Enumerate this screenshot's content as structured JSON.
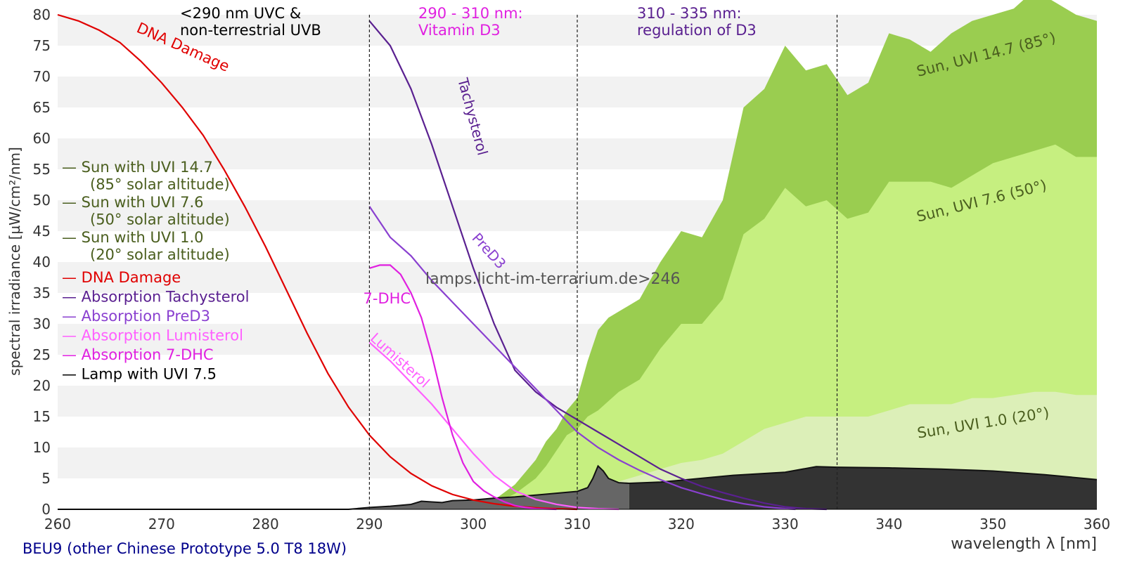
{
  "chart_data": {
    "type": "area",
    "xlabel": "wavelength λ [nm]",
    "ylabel": "spectral irradiance [µW/cm²/nm]",
    "xlim": [
      260,
      360
    ],
    "ylim": [
      0,
      80
    ],
    "xticks": [
      260,
      270,
      280,
      290,
      300,
      310,
      320,
      330,
      340,
      350,
      360
    ],
    "yticks": [
      0,
      5,
      10,
      15,
      20,
      25,
      30,
      35,
      40,
      45,
      50,
      55,
      60,
      65,
      70,
      75,
      80
    ],
    "grid": "horizontal alternating bands",
    "caption": "BEU9 (other Chinese Prototype 5.0 T8 18W)",
    "watermark": "lamps.licht-im-terrarium.de>246",
    "regions": [
      {
        "x": 290,
        "lines": [
          "<290 nm UVC &",
          "non-terrestrial UVB"
        ],
        "color": "#000000"
      },
      {
        "x": 310,
        "lines": [
          "290 - 310 nm:",
          "Vitamin D3"
        ],
        "color": "#e020e0"
      },
      {
        "x": 335,
        "lines": [
          "310 - 335 nm:",
          "regulation of D3"
        ],
        "color": "#5a2090"
      }
    ],
    "legend_placement": "left",
    "legend": [
      {
        "lines": [
          "— Sun with UVI 14.7",
          "(85° solar altitude)"
        ],
        "color": "#4a5e1e"
      },
      {
        "lines": [
          "— Sun with UVI 7.6",
          "(50° solar altitude)"
        ],
        "color": "#4a5e1e"
      },
      {
        "lines": [
          "— Sun with UVI 1.0",
          "(20° solar altitude)"
        ],
        "color": "#4a5e1e"
      },
      {
        "lines": [
          "— DNA Damage"
        ],
        "color": "#e00000"
      },
      {
        "lines": [
          "— Absorption Tachysterol"
        ],
        "color": "#5a2090"
      },
      {
        "lines": [
          "— Absorption PreD3"
        ],
        "color": "#8a40d0"
      },
      {
        "lines": [
          "— Absorption Lumisterol"
        ],
        "color": "#ff60ff"
      },
      {
        "lines": [
          "— Absorption 7-DHC"
        ],
        "color": "#e020e0"
      },
      {
        "lines": [
          "— Lamp with UVI 7.5"
        ],
        "color": "#000000"
      }
    ],
    "series": [
      {
        "name": "Sun with UVI 14.7",
        "label": "Sun, UVI 14.7 (85°)",
        "kind": "area",
        "color": "#9acd50",
        "x": [
          300,
          302,
          304,
          305,
          306,
          307,
          308,
          309,
          310,
          311,
          312,
          313,
          314,
          315,
          316,
          318,
          320,
          322,
          324,
          326,
          328,
          330,
          332,
          334,
          336,
          338,
          340,
          342,
          344,
          346,
          348,
          350,
          352,
          354,
          356,
          358,
          360
        ],
        "y": [
          0,
          1.5,
          4,
          6,
          8,
          11,
          13,
          16,
          18,
          24,
          29,
          31,
          32,
          33,
          34,
          40,
          45,
          44,
          50,
          65,
          68,
          75,
          71,
          72,
          67,
          69,
          77,
          76,
          74,
          77,
          79,
          80,
          81,
          84,
          82,
          80,
          79
        ]
      },
      {
        "name": "Sun with UVI 7.6",
        "label": "Sun, UVI 7.6 (50°)",
        "kind": "area",
        "color": "#c6ef80",
        "x": [
          300,
          302,
          304,
          306,
          307,
          308,
          309,
          310,
          311,
          312,
          313,
          314,
          316,
          318,
          320,
          322,
          324,
          326,
          328,
          330,
          332,
          334,
          336,
          338,
          340,
          342,
          344,
          346,
          348,
          350,
          352,
          354,
          356,
          358,
          360
        ],
        "y": [
          0,
          1,
          2.5,
          5,
          7,
          9.5,
          12,
          13,
          15,
          16,
          17.5,
          19,
          21,
          26,
          30,
          30,
          34,
          44.5,
          47,
          52,
          49,
          50,
          47,
          48,
          53,
          53,
          53,
          52,
          54,
          56,
          57,
          58,
          59,
          57,
          57
        ]
      },
      {
        "name": "Sun with UVI 1.0",
        "label": "Sun, UVI 1.0 (20°)",
        "kind": "area",
        "color": "#dcefb8",
        "x": [
          302,
          304,
          306,
          308,
          310,
          312,
          314,
          316,
          318,
          320,
          322,
          324,
          326,
          328,
          330,
          332,
          334,
          336,
          338,
          340,
          342,
          344,
          346,
          348,
          350,
          352,
          354,
          356,
          358,
          360
        ],
        "y": [
          0,
          0.3,
          0.8,
          1.5,
          2.5,
          3.5,
          4.5,
          5.5,
          6.5,
          7.5,
          8,
          9,
          11,
          13,
          14,
          15,
          15,
          15,
          15,
          16,
          17,
          17,
          17,
          18,
          18,
          18.5,
          19,
          19,
          18.5,
          18.5
        ]
      },
      {
        "name": "DNA Damage",
        "label": "DNA Damage",
        "kind": "line",
        "color": "#e00000",
        "x": [
          260,
          262,
          264,
          266,
          268,
          270,
          272,
          274,
          276,
          278,
          280,
          282,
          284,
          286,
          288,
          290,
          292,
          294,
          296,
          298,
          300,
          302,
          304,
          306,
          308,
          310
        ],
        "y": [
          80,
          79,
          77.5,
          75.5,
          72.5,
          69,
          65,
          60.5,
          55,
          49,
          42.5,
          35.5,
          28.5,
          22,
          16.5,
          12,
          8.5,
          5.8,
          3.8,
          2.4,
          1.5,
          0.9,
          0.5,
          0.25,
          0.1,
          0
        ]
      },
      {
        "name": "Absorption Tachysterol",
        "label": "Tachysterol",
        "kind": "line",
        "color": "#5a2090",
        "x": [
          290,
          292,
          294,
          296,
          298,
          300,
          302,
          304,
          306,
          308,
          310,
          312,
          314,
          316,
          318,
          320,
          322,
          324,
          326,
          328,
          330,
          332,
          334
        ],
        "y": [
          79,
          75,
          68,
          59,
          49,
          39,
          30,
          22.5,
          19,
          16.5,
          14.5,
          12.5,
          10.5,
          8.5,
          6.5,
          5,
          3.7,
          2.7,
          1.8,
          1.0,
          0.4,
          0.1,
          0
        ]
      },
      {
        "name": "Absorption PreD3",
        "label": "PreD3",
        "kind": "line",
        "color": "#8a40d0",
        "x": [
          290,
          292,
          294,
          296,
          298,
          300,
          302,
          304,
          306,
          308,
          310,
          312,
          314,
          316,
          318,
          320,
          322,
          324,
          326,
          328,
          330,
          331
        ],
        "y": [
          49,
          44,
          41,
          37,
          33.5,
          30,
          26.5,
          23,
          19.5,
          16,
          12.5,
          10,
          8,
          6.3,
          4.8,
          3.5,
          2.5,
          1.6,
          0.9,
          0.4,
          0.1,
          0
        ]
      },
      {
        "name": "Absorption Lumisterol",
        "label": "Lumisterol",
        "kind": "line",
        "color": "#ff60ff",
        "x": [
          290,
          292,
          294,
          296,
          298,
          300,
          302,
          304,
          306,
          308,
          310,
          312,
          314
        ],
        "y": [
          27,
          24,
          20.5,
          17,
          13,
          9,
          5.5,
          3,
          1.6,
          0.8,
          0.3,
          0.1,
          0
        ]
      },
      {
        "name": "Absorption 7-DHC",
        "label": "7-DHC",
        "kind": "line",
        "color": "#e020e0",
        "x": [
          290,
          291,
          292,
          293,
          294,
          295,
          296,
          297,
          298,
          299,
          300,
          301,
          302,
          303,
          304,
          305,
          306,
          307,
          308
        ],
        "y": [
          39,
          39.5,
          39.5,
          38,
          35,
          31,
          25,
          18,
          12,
          7.5,
          4.5,
          3,
          2,
          1.2,
          0.6,
          0.3,
          0.1,
          0.05,
          0
        ]
      },
      {
        "name": "Lamp with UVI 7.5",
        "kind": "area",
        "color": "#2e2e2e",
        "x": [
          260,
          288,
          290,
          292,
          294,
          295,
          296,
          297,
          298,
          300,
          302,
          304,
          306,
          308,
          310,
          311,
          311.5,
          312,
          312.5,
          313,
          314,
          315,
          318,
          320,
          325,
          330,
          333,
          335,
          340,
          345,
          350,
          355,
          360
        ],
        "y": [
          0,
          0,
          0.3,
          0.5,
          0.8,
          1.3,
          1.2,
          1.1,
          1.4,
          1.5,
          1.8,
          2,
          2.3,
          2.6,
          2.9,
          3.5,
          5,
          7,
          6.2,
          5,
          4.3,
          4.2,
          4.4,
          4.7,
          5.5,
          6,
          6.9,
          6.8,
          6.7,
          6.5,
          6.2,
          5.6,
          4.8
        ]
      }
    ]
  }
}
